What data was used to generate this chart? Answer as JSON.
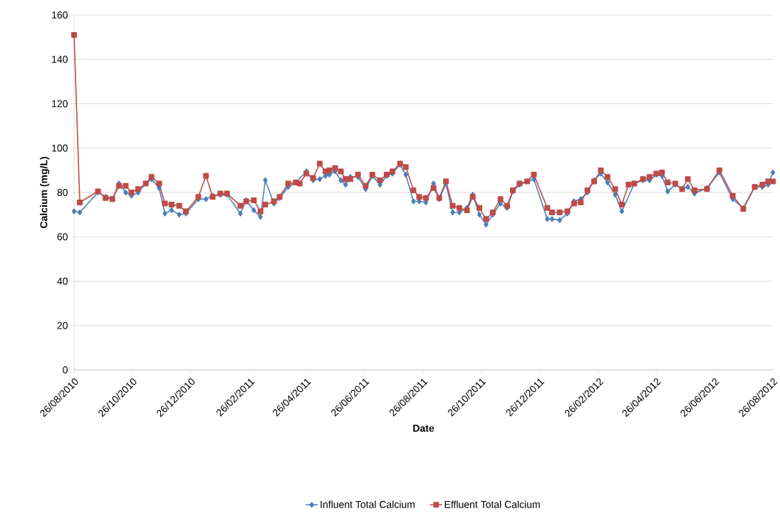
{
  "chart_data": {
    "type": "line",
    "xlabel": "Date",
    "ylabel": "Calcium (mg/L)",
    "x": [
      "2010-08-26",
      "2010-09-01",
      "2010-09-20",
      "2010-09-28",
      "2010-10-05",
      "2010-10-12",
      "2010-10-19",
      "2010-10-25",
      "2010-11-01",
      "2010-11-09",
      "2010-11-15",
      "2010-11-23",
      "2010-11-29",
      "2010-12-06",
      "2010-12-14",
      "2010-12-21",
      "2011-01-03",
      "2011-01-11",
      "2011-01-18",
      "2011-01-26",
      "2011-02-02",
      "2011-02-16",
      "2011-02-22",
      "2011-03-02",
      "2011-03-09",
      "2011-03-14",
      "2011-03-23",
      "2011-03-29",
      "2011-04-07",
      "2011-04-15",
      "2011-04-19",
      "2011-04-26",
      "2011-05-03",
      "2011-05-10",
      "2011-05-16",
      "2011-05-20",
      "2011-05-26",
      "2011-06-01",
      "2011-06-06",
      "2011-06-11",
      "2011-06-19",
      "2011-06-27",
      "2011-07-04",
      "2011-07-12",
      "2011-07-19",
      "2011-07-25",
      "2011-08-02",
      "2011-08-08",
      "2011-08-16",
      "2011-08-22",
      "2011-08-29",
      "2011-09-06",
      "2011-09-12",
      "2011-09-19",
      "2011-09-26",
      "2011-10-03",
      "2011-10-11",
      "2011-10-17",
      "2011-10-24",
      "2011-10-31",
      "2011-11-07",
      "2011-11-15",
      "2011-11-22",
      "2011-11-28",
      "2011-12-05",
      "2011-12-13",
      "2011-12-20",
      "2012-01-03",
      "2012-01-08",
      "2012-01-16",
      "2012-01-24",
      "2012-01-31",
      "2012-02-07",
      "2012-02-14",
      "2012-02-21",
      "2012-02-28",
      "2012-03-06",
      "2012-03-14",
      "2012-03-21",
      "2012-03-28",
      "2012-04-03",
      "2012-04-12",
      "2012-04-19",
      "2012-04-26",
      "2012-05-02",
      "2012-05-08",
      "2012-05-16",
      "2012-05-23",
      "2012-05-29",
      "2012-06-05",
      "2012-06-18",
      "2012-07-01",
      "2012-07-15",
      "2012-07-26",
      "2012-08-07",
      "2012-08-15",
      "2012-08-21",
      "2012-08-26"
    ],
    "series": [
      {
        "name": "Influent Total Calcium",
        "color": "#4a7ebb",
        "marker": "diamond",
        "values": [
          71.5,
          71,
          80,
          78,
          77,
          84,
          80,
          78.5,
          80,
          84,
          86,
          82,
          70.5,
          72,
          70,
          70.5,
          77,
          77,
          78.5,
          79,
          79,
          70.5,
          76.5,
          72,
          69,
          85.5,
          75,
          77.5,
          82.5,
          84.5,
          null,
          89.5,
          85.5,
          86,
          87.5,
          88,
          89.5,
          85.5,
          83.5,
          87,
          87,
          81.5,
          87.5,
          83.5,
          87.5,
          88.5,
          92.5,
          88,
          76,
          76,
          75.5,
          84,
          77,
          84,
          71,
          71,
          73,
          79,
          70,
          65.5,
          70,
          75,
          73,
          80.5,
          83.5,
          null,
          86,
          68,
          68,
          67.5,
          70.5,
          76,
          77,
          80,
          85.5,
          88.5,
          84.5,
          79,
          71.5,
          null,
          84,
          85.5,
          85.5,
          88,
          87.5,
          80.5,
          83.5,
          81.5,
          82.5,
          79.5,
          82,
          89,
          77,
          73,
          82.5,
          82.5,
          83.5,
          89
        ]
      },
      {
        "name": "Effluent Total Calcium",
        "color": "#be4b48",
        "marker": "square",
        "values": [
          151,
          75.5,
          80.5,
          77.5,
          77,
          83,
          83,
          80,
          81.5,
          84,
          87,
          84,
          75,
          74.5,
          74,
          71.5,
          78,
          87.5,
          78,
          79.5,
          79.5,
          74,
          76,
          76.5,
          71.5,
          74.5,
          76,
          78,
          84,
          84.5,
          84,
          88.5,
          86.5,
          93,
          89.5,
          90,
          91,
          89.5,
          86,
          86,
          88,
          83,
          88,
          85.5,
          88,
          89.5,
          93,
          91.5,
          81,
          78,
          77.5,
          82,
          77.5,
          85,
          74,
          73,
          72,
          78,
          73,
          68,
          71,
          77,
          74,
          81,
          84,
          85,
          88,
          73,
          71,
          71,
          71.5,
          75,
          75.5,
          81,
          85,
          90,
          87,
          81.5,
          74.5,
          83.5,
          84,
          86,
          87,
          88.5,
          89,
          84.5,
          84,
          81.5,
          86,
          81,
          81.5,
          90,
          78.5,
          72.5,
          82.5,
          83.5,
          85,
          85
        ]
      }
    ],
    "xlim": [
      "2010-08-26",
      "2012-08-26"
    ],
    "xticks": [
      {
        "value": "2010-08-26",
        "label": "26/08/2010"
      },
      {
        "value": "2010-10-26",
        "label": "26/10/2010"
      },
      {
        "value": "2010-12-26",
        "label": "26/12/2010"
      },
      {
        "value": "2011-02-26",
        "label": "26/02/2011"
      },
      {
        "value": "2011-04-26",
        "label": "26/04/2011"
      },
      {
        "value": "2011-06-26",
        "label": "26/06/2011"
      },
      {
        "value": "2011-08-26",
        "label": "26/08/2011"
      },
      {
        "value": "2011-10-26",
        "label": "26/10/2011"
      },
      {
        "value": "2011-12-26",
        "label": "26/12/2011"
      },
      {
        "value": "2012-02-26",
        "label": "26/02/2012"
      },
      {
        "value": "2012-04-26",
        "label": "26/04/2012"
      },
      {
        "value": "2012-06-26",
        "label": "26/06/2012"
      },
      {
        "value": "2012-08-26",
        "label": "26/08/2012"
      }
    ],
    "ylim": [
      0,
      160
    ],
    "yticks": [
      0,
      20,
      40,
      60,
      80,
      100,
      120,
      140,
      160
    ],
    "grid": "y",
    "legend": "bottom",
    "line_style": "solid"
  }
}
